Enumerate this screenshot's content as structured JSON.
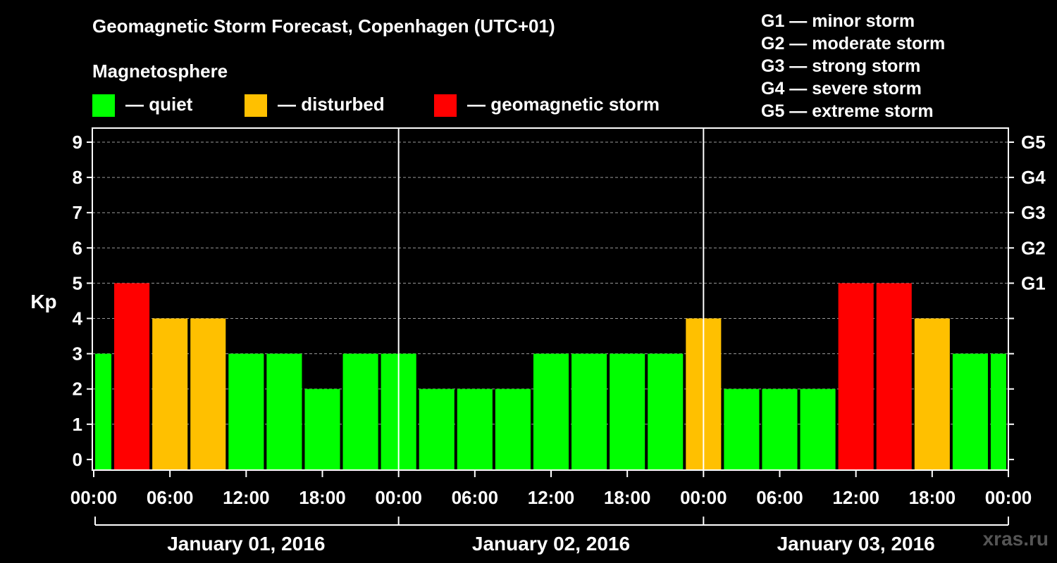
{
  "title": "Geomagnetic Storm Forecast, Copenhagen (UTC+01)",
  "legend": {
    "heading": "Magnetosphere",
    "items": [
      {
        "label": "— quiet",
        "color": "#00ff00"
      },
      {
        "label": "— disturbed",
        "color": "#ffc000"
      },
      {
        "label": "— geomagnetic storm",
        "color": "#ff0000"
      }
    ]
  },
  "storm_scale": [
    "G1 — minor storm",
    "G2 — moderate storm",
    "G3 — strong storm",
    "G4 — severe storm",
    "G5 — extreme storm"
  ],
  "watermark": "xras.ru",
  "colors": {
    "quiet": "#00ff00",
    "disturbed": "#ffc000",
    "storm": "#ff0000"
  },
  "chart_data": {
    "type": "bar",
    "ylabel": "Kp",
    "ylim": [
      0,
      9
    ],
    "yticks": [
      0,
      1,
      2,
      3,
      4,
      5,
      6,
      7,
      8,
      9
    ],
    "right_ticks": [
      {
        "kp": 5,
        "label": "G1"
      },
      {
        "kp": 6,
        "label": "G2"
      },
      {
        "kp": 7,
        "label": "G3"
      },
      {
        "kp": 8,
        "label": "G4"
      },
      {
        "kp": 9,
        "label": "G5"
      }
    ],
    "xtick_labels": [
      "00:00",
      "06:00",
      "12:00",
      "18:00",
      "00:00",
      "06:00",
      "12:00",
      "18:00",
      "00:00",
      "06:00",
      "12:00",
      "18:00",
      "00:00"
    ],
    "days": [
      "January 01, 2016",
      "January 02, 2016",
      "January 03, 2016"
    ],
    "bar_hours": [
      0,
      3,
      6,
      9,
      12,
      15,
      18,
      21,
      24,
      27,
      30,
      33,
      36,
      39,
      42,
      45,
      48,
      51,
      54,
      57,
      60,
      63,
      66,
      69,
      72
    ],
    "values": [
      3,
      5,
      4,
      4,
      3,
      3,
      2,
      3,
      3,
      2,
      2,
      2,
      3,
      3,
      3,
      3,
      4,
      2,
      2,
      2,
      5,
      5,
      4,
      3,
      3
    ],
    "levels": [
      "quiet",
      "storm",
      "disturbed",
      "disturbed",
      "quiet",
      "quiet",
      "quiet",
      "quiet",
      "quiet",
      "quiet",
      "quiet",
      "quiet",
      "quiet",
      "quiet",
      "quiet",
      "quiet",
      "disturbed",
      "quiet",
      "quiet",
      "quiet",
      "storm",
      "storm",
      "disturbed",
      "quiet",
      "quiet"
    ],
    "grid": "dashed horizontal"
  }
}
